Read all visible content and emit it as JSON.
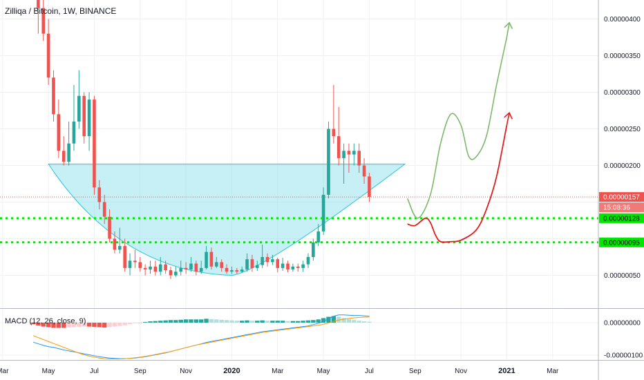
{
  "header": {
    "title": "Zilliqa / Bitcoin, 1W, BINANCE"
  },
  "macd": {
    "label": "MACD (12, 26, close, 9)"
  },
  "colors": {
    "up": "#26a69a",
    "down": "#ef5350",
    "cup_fill": "#80deea",
    "cup_stroke": "#26c6da",
    "support": "#00e600",
    "green_path": "#7cb86a",
    "red_path": "#e21b1b",
    "macd_line": "#2196f3",
    "signal_line": "#ff9800",
    "price_badge": "#ef5350",
    "timer_badge": "#f07a78"
  },
  "chart_data": {
    "type": "candlestick",
    "symbol": "Zilliqa / Bitcoin",
    "interval": "1W",
    "exchange": "BINANCE",
    "y_ticks": [
      "0.00000400",
      "0.00000350",
      "0.00000300",
      "0.00000250",
      "0.00000200",
      "0.00000050"
    ],
    "x_ticks": [
      {
        "label": "Mar",
        "week": -6
      },
      {
        "label": "May",
        "week": 3
      },
      {
        "label": "Jul",
        "week": 12
      },
      {
        "label": "Sep",
        "week": 21
      },
      {
        "label": "Nov",
        "week": 30
      },
      {
        "label": "2020",
        "week": 39,
        "bold": true
      },
      {
        "label": "Mar",
        "week": 48
      },
      {
        "label": "May",
        "week": 57
      },
      {
        "label": "Jul",
        "week": 66
      },
      {
        "label": "Sep",
        "week": 75
      },
      {
        "label": "Nov",
        "week": 84
      },
      {
        "label": "2021",
        "week": 93,
        "bold": true
      },
      {
        "label": "Mar",
        "week": 102
      }
    ],
    "ylim": [
      0.0,
      4.4e-06
    ],
    "current_price": {
      "value": 1.57e-06,
      "label": "0.00000157",
      "countdown": "15:08:36"
    },
    "support_levels": [
      {
        "value": 1.28e-06,
        "label": "0.00000128"
      },
      {
        "value": 9.5e-07,
        "label": "0.00000095"
      }
    ],
    "candles": [
      [
        4.6,
        4.42,
        4.7,
        4.3
      ],
      [
        4.42,
        4.15,
        4.5,
        3.8
      ],
      [
        4.15,
        3.8,
        4.3,
        3.7
      ],
      [
        3.8,
        3.2,
        4.0,
        3.1
      ],
      [
        3.2,
        2.7,
        3.3,
        2.6
      ],
      [
        2.7,
        2.2,
        2.9,
        2.1
      ],
      [
        2.2,
        2.05,
        2.4,
        2.0
      ],
      [
        2.05,
        2.3,
        2.6,
        2.0
      ],
      [
        2.3,
        2.6,
        3.1,
        2.2
      ],
      [
        2.6,
        2.95,
        3.3,
        2.5
      ],
      [
        2.95,
        2.4,
        3.0,
        2.3
      ],
      [
        2.4,
        2.9,
        3.0,
        2.2
      ],
      [
        2.9,
        1.7,
        2.95,
        1.6
      ],
      [
        1.7,
        1.5,
        1.8,
        1.4
      ],
      [
        1.5,
        1.3,
        1.6,
        1.2
      ],
      [
        1.3,
        1.0,
        1.4,
        0.95
      ],
      [
        1.0,
        0.85,
        1.1,
        0.8
      ],
      [
        0.85,
        0.9,
        1.15,
        0.8
      ],
      [
        0.9,
        0.6,
        1.0,
        0.55
      ],
      [
        0.6,
        0.7,
        0.8,
        0.5
      ],
      [
        0.7,
        0.68,
        0.85,
        0.6
      ],
      [
        0.68,
        0.6,
        0.75,
        0.55
      ],
      [
        0.6,
        0.58,
        0.65,
        0.5
      ],
      [
        0.58,
        0.62,
        0.7,
        0.52
      ],
      [
        0.62,
        0.55,
        0.7,
        0.5
      ],
      [
        0.55,
        0.65,
        0.75,
        0.5
      ],
      [
        0.65,
        0.57,
        0.7,
        0.52
      ],
      [
        0.57,
        0.5,
        0.62,
        0.45
      ],
      [
        0.5,
        0.55,
        0.62,
        0.48
      ],
      [
        0.55,
        0.6,
        0.7,
        0.5
      ],
      [
        0.6,
        0.58,
        0.68,
        0.52
      ],
      [
        0.58,
        0.66,
        0.75,
        0.55
      ],
      [
        0.66,
        0.55,
        0.7,
        0.5
      ],
      [
        0.55,
        0.6,
        0.7,
        0.52
      ],
      [
        0.6,
        0.82,
        0.9,
        0.58
      ],
      [
        0.82,
        0.62,
        0.88,
        0.58
      ],
      [
        0.62,
        0.68,
        0.75,
        0.6
      ],
      [
        0.68,
        0.6,
        0.72,
        0.55
      ],
      [
        0.6,
        0.55,
        0.65,
        0.52
      ],
      [
        0.55,
        0.57,
        0.62,
        0.52
      ],
      [
        0.57,
        0.55,
        0.6,
        0.52
      ],
      [
        0.55,
        0.58,
        0.62,
        0.53
      ],
      [
        0.58,
        0.72,
        0.8,
        0.55
      ],
      [
        0.72,
        0.6,
        0.78,
        0.55
      ],
      [
        0.6,
        0.64,
        0.7,
        0.56
      ],
      [
        0.64,
        0.75,
        0.92,
        0.6
      ],
      [
        0.75,
        0.68,
        0.8,
        0.62
      ],
      [
        0.68,
        0.72,
        0.78,
        0.64
      ],
      [
        0.72,
        0.6,
        0.74,
        0.54
      ],
      [
        0.6,
        0.66,
        0.74,
        0.56
      ],
      [
        0.66,
        0.58,
        0.7,
        0.54
      ],
      [
        0.58,
        0.62,
        0.66,
        0.55
      ],
      [
        0.62,
        0.6,
        0.66,
        0.55
      ],
      [
        0.6,
        0.65,
        0.7,
        0.55
      ],
      [
        0.65,
        0.75,
        0.8,
        0.6
      ],
      [
        0.75,
        0.95,
        1.0,
        0.7
      ],
      [
        0.95,
        1.1,
        1.2,
        0.9
      ],
      [
        1.1,
        1.6,
        1.7,
        1.05
      ],
      [
        1.6,
        2.5,
        2.6,
        1.55
      ],
      [
        2.5,
        2.4,
        3.1,
        2.3
      ],
      [
        2.4,
        2.1,
        2.8,
        2.0
      ],
      [
        2.1,
        2.2,
        2.3,
        1.75
      ],
      [
        2.2,
        2.15,
        2.3,
        1.9
      ],
      [
        2.15,
        2.2,
        2.3,
        2.0
      ],
      [
        2.2,
        2.0,
        2.3,
        1.9
      ],
      [
        2.0,
        1.85,
        2.1,
        1.75
      ],
      [
        1.85,
        1.57,
        1.9,
        1.5
      ]
    ],
    "projections": [
      {
        "name": "",
        "color": "green",
        "points": [
          [
            73.5,
            1.55
          ],
          [
            75.5,
            1.28
          ],
          [
            78,
            1.6
          ],
          [
            80,
            2.3
          ],
          [
            82,
            2.7
          ],
          [
            84,
            2.55
          ],
          [
            85.5,
            2.13
          ],
          [
            87,
            2.12
          ],
          [
            89,
            2.4
          ],
          [
            91,
            3.1
          ],
          [
            93,
            3.75
          ]
        ],
        "arrow_head": [
          93.5,
          3.95
        ]
      },
      {
        "name": "",
        "color": "red",
        "points": [
          [
            73.5,
            1.2
          ],
          [
            75,
            1.18
          ],
          [
            77,
            1.28
          ],
          [
            78,
            1.22
          ],
          [
            79,
            1.05
          ],
          [
            80,
            0.96
          ],
          [
            82,
            0.96
          ],
          [
            84,
            0.98
          ],
          [
            87,
            1.12
          ],
          [
            89,
            1.4
          ],
          [
            91,
            1.85
          ],
          [
            93,
            2.55
          ]
        ],
        "arrow_head": [
          93.5,
          2.72
        ]
      }
    ],
    "cup": {
      "start": [
        3,
        2.02
      ],
      "end": [
        73,
        2.02
      ],
      "bottom": [
        39,
        0.5
      ]
    },
    "macd_ticks": [
      "0.00000000",
      "-0.00000100"
    ],
    "macd_hist": [
      -0.05,
      -0.09,
      -0.12,
      -0.14,
      -0.16,
      -0.16,
      -0.16,
      -0.15,
      -0.14,
      -0.13,
      -0.12,
      -0.12,
      -0.13,
      -0.14,
      -0.15,
      -0.14,
      -0.12,
      -0.1,
      -0.08,
      -0.05,
      -0.02,
      0.0,
      0.02,
      0.04,
      0.05,
      0.06,
      0.07,
      0.08,
      0.08,
      0.09,
      0.1,
      0.1,
      0.1,
      0.1,
      0.12,
      0.11,
      0.1,
      0.09,
      0.08,
      0.07,
      0.06,
      0.06,
      0.07,
      0.06,
      0.06,
      0.07,
      0.06,
      0.06,
      0.06,
      0.06,
      0.05,
      0.05,
      0.05,
      0.06,
      0.07,
      0.08,
      0.1,
      0.14,
      0.18,
      0.2,
      0.18,
      0.14,
      0.11,
      0.08,
      0.06,
      0.04,
      0.03
    ],
    "macd_line": [
      -0.6,
      -0.65,
      -0.7,
      -0.74,
      -0.76,
      -0.8,
      -0.84,
      -0.87,
      -0.9,
      -0.93,
      -0.96,
      -0.99,
      -1.02,
      -1.05,
      -1.07,
      -1.09,
      -1.1,
      -1.11,
      -1.11,
      -1.1,
      -1.09,
      -1.07,
      -1.05,
      -1.02,
      -0.99,
      -0.96,
      -0.93,
      -0.89,
      -0.85,
      -0.81,
      -0.77,
      -0.73,
      -0.69,
      -0.65,
      -0.61,
      -0.58,
      -0.55,
      -0.52,
      -0.49,
      -0.46,
      -0.43,
      -0.4,
      -0.37,
      -0.34,
      -0.31,
      -0.28,
      -0.26,
      -0.24,
      -0.22,
      -0.2,
      -0.18,
      -0.16,
      -0.14,
      -0.12,
      -0.1,
      -0.06,
      -0.02,
      0.04,
      0.12,
      0.2,
      0.24,
      0.24,
      0.23,
      0.22,
      0.22,
      0.21,
      0.2
    ],
    "signal_line": [
      -0.4,
      -0.46,
      -0.52,
      -0.58,
      -0.64,
      -0.7,
      -0.76,
      -0.82,
      -0.88,
      -0.94,
      -0.99,
      -1.03,
      -1.06,
      -1.09,
      -1.11,
      -1.12,
      -1.12,
      -1.12,
      -1.11,
      -1.1,
      -1.08,
      -1.06,
      -1.04,
      -1.01,
      -0.98,
      -0.95,
      -0.92,
      -0.89,
      -0.85,
      -0.81,
      -0.77,
      -0.73,
      -0.69,
      -0.66,
      -0.63,
      -0.6,
      -0.57,
      -0.54,
      -0.51,
      -0.48,
      -0.45,
      -0.42,
      -0.39,
      -0.36,
      -0.33,
      -0.3,
      -0.28,
      -0.26,
      -0.24,
      -0.22,
      -0.2,
      -0.18,
      -0.16,
      -0.14,
      -0.12,
      -0.1,
      -0.08,
      -0.05,
      -0.01,
      0.04,
      0.08,
      0.11,
      0.13,
      0.15,
      0.16,
      0.17,
      0.17
    ]
  }
}
